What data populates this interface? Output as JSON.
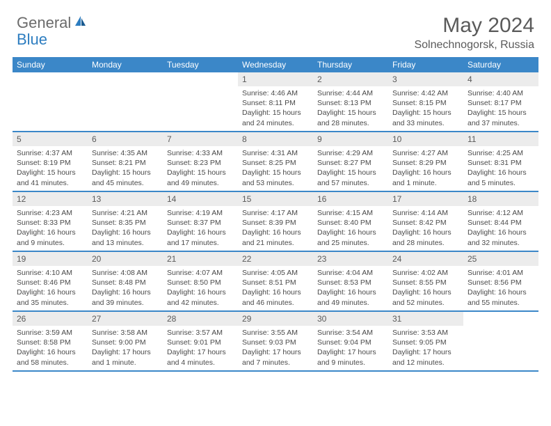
{
  "brand": {
    "text1": "General",
    "text2": "Blue",
    "text_color": "#6b6b6b",
    "accent_color": "#2d7dc0"
  },
  "title": {
    "month": "May 2024",
    "location": "Solnechnogorsk, Russia",
    "month_fontsize": 30,
    "location_fontsize": 16,
    "text_color": "#5a5a5a"
  },
  "colors": {
    "header_bg": "#3b87c8",
    "header_text": "#ffffff",
    "daynum_bg": "#ececec",
    "daynum_text": "#5a5a5a",
    "body_text": "#4a4a4a",
    "divider": "#3b87c8",
    "background": "#ffffff"
  },
  "day_labels": [
    "Sunday",
    "Monday",
    "Tuesday",
    "Wednesday",
    "Thursday",
    "Friday",
    "Saturday"
  ],
  "weeks": [
    [
      {
        "empty": true
      },
      {
        "empty": true
      },
      {
        "empty": true
      },
      {
        "num": "1",
        "sunrise": "Sunrise: 4:46 AM",
        "sunset": "Sunset: 8:11 PM",
        "daylight": "Daylight: 15 hours and 24 minutes."
      },
      {
        "num": "2",
        "sunrise": "Sunrise: 4:44 AM",
        "sunset": "Sunset: 8:13 PM",
        "daylight": "Daylight: 15 hours and 28 minutes."
      },
      {
        "num": "3",
        "sunrise": "Sunrise: 4:42 AM",
        "sunset": "Sunset: 8:15 PM",
        "daylight": "Daylight: 15 hours and 33 minutes."
      },
      {
        "num": "4",
        "sunrise": "Sunrise: 4:40 AM",
        "sunset": "Sunset: 8:17 PM",
        "daylight": "Daylight: 15 hours and 37 minutes."
      }
    ],
    [
      {
        "num": "5",
        "sunrise": "Sunrise: 4:37 AM",
        "sunset": "Sunset: 8:19 PM",
        "daylight": "Daylight: 15 hours and 41 minutes."
      },
      {
        "num": "6",
        "sunrise": "Sunrise: 4:35 AM",
        "sunset": "Sunset: 8:21 PM",
        "daylight": "Daylight: 15 hours and 45 minutes."
      },
      {
        "num": "7",
        "sunrise": "Sunrise: 4:33 AM",
        "sunset": "Sunset: 8:23 PM",
        "daylight": "Daylight: 15 hours and 49 minutes."
      },
      {
        "num": "8",
        "sunrise": "Sunrise: 4:31 AM",
        "sunset": "Sunset: 8:25 PM",
        "daylight": "Daylight: 15 hours and 53 minutes."
      },
      {
        "num": "9",
        "sunrise": "Sunrise: 4:29 AM",
        "sunset": "Sunset: 8:27 PM",
        "daylight": "Daylight: 15 hours and 57 minutes."
      },
      {
        "num": "10",
        "sunrise": "Sunrise: 4:27 AM",
        "sunset": "Sunset: 8:29 PM",
        "daylight": "Daylight: 16 hours and 1 minute."
      },
      {
        "num": "11",
        "sunrise": "Sunrise: 4:25 AM",
        "sunset": "Sunset: 8:31 PM",
        "daylight": "Daylight: 16 hours and 5 minutes."
      }
    ],
    [
      {
        "num": "12",
        "sunrise": "Sunrise: 4:23 AM",
        "sunset": "Sunset: 8:33 PM",
        "daylight": "Daylight: 16 hours and 9 minutes."
      },
      {
        "num": "13",
        "sunrise": "Sunrise: 4:21 AM",
        "sunset": "Sunset: 8:35 PM",
        "daylight": "Daylight: 16 hours and 13 minutes."
      },
      {
        "num": "14",
        "sunrise": "Sunrise: 4:19 AM",
        "sunset": "Sunset: 8:37 PM",
        "daylight": "Daylight: 16 hours and 17 minutes."
      },
      {
        "num": "15",
        "sunrise": "Sunrise: 4:17 AM",
        "sunset": "Sunset: 8:39 PM",
        "daylight": "Daylight: 16 hours and 21 minutes."
      },
      {
        "num": "16",
        "sunrise": "Sunrise: 4:15 AM",
        "sunset": "Sunset: 8:40 PM",
        "daylight": "Daylight: 16 hours and 25 minutes."
      },
      {
        "num": "17",
        "sunrise": "Sunrise: 4:14 AM",
        "sunset": "Sunset: 8:42 PM",
        "daylight": "Daylight: 16 hours and 28 minutes."
      },
      {
        "num": "18",
        "sunrise": "Sunrise: 4:12 AM",
        "sunset": "Sunset: 8:44 PM",
        "daylight": "Daylight: 16 hours and 32 minutes."
      }
    ],
    [
      {
        "num": "19",
        "sunrise": "Sunrise: 4:10 AM",
        "sunset": "Sunset: 8:46 PM",
        "daylight": "Daylight: 16 hours and 35 minutes."
      },
      {
        "num": "20",
        "sunrise": "Sunrise: 4:08 AM",
        "sunset": "Sunset: 8:48 PM",
        "daylight": "Daylight: 16 hours and 39 minutes."
      },
      {
        "num": "21",
        "sunrise": "Sunrise: 4:07 AM",
        "sunset": "Sunset: 8:50 PM",
        "daylight": "Daylight: 16 hours and 42 minutes."
      },
      {
        "num": "22",
        "sunrise": "Sunrise: 4:05 AM",
        "sunset": "Sunset: 8:51 PM",
        "daylight": "Daylight: 16 hours and 46 minutes."
      },
      {
        "num": "23",
        "sunrise": "Sunrise: 4:04 AM",
        "sunset": "Sunset: 8:53 PM",
        "daylight": "Daylight: 16 hours and 49 minutes."
      },
      {
        "num": "24",
        "sunrise": "Sunrise: 4:02 AM",
        "sunset": "Sunset: 8:55 PM",
        "daylight": "Daylight: 16 hours and 52 minutes."
      },
      {
        "num": "25",
        "sunrise": "Sunrise: 4:01 AM",
        "sunset": "Sunset: 8:56 PM",
        "daylight": "Daylight: 16 hours and 55 minutes."
      }
    ],
    [
      {
        "num": "26",
        "sunrise": "Sunrise: 3:59 AM",
        "sunset": "Sunset: 8:58 PM",
        "daylight": "Daylight: 16 hours and 58 minutes."
      },
      {
        "num": "27",
        "sunrise": "Sunrise: 3:58 AM",
        "sunset": "Sunset: 9:00 PM",
        "daylight": "Daylight: 17 hours and 1 minute."
      },
      {
        "num": "28",
        "sunrise": "Sunrise: 3:57 AM",
        "sunset": "Sunset: 9:01 PM",
        "daylight": "Daylight: 17 hours and 4 minutes."
      },
      {
        "num": "29",
        "sunrise": "Sunrise: 3:55 AM",
        "sunset": "Sunset: 9:03 PM",
        "daylight": "Daylight: 17 hours and 7 minutes."
      },
      {
        "num": "30",
        "sunrise": "Sunrise: 3:54 AM",
        "sunset": "Sunset: 9:04 PM",
        "daylight": "Daylight: 17 hours and 9 minutes."
      },
      {
        "num": "31",
        "sunrise": "Sunrise: 3:53 AM",
        "sunset": "Sunset: 9:05 PM",
        "daylight": "Daylight: 17 hours and 12 minutes."
      },
      {
        "empty": true
      }
    ]
  ]
}
